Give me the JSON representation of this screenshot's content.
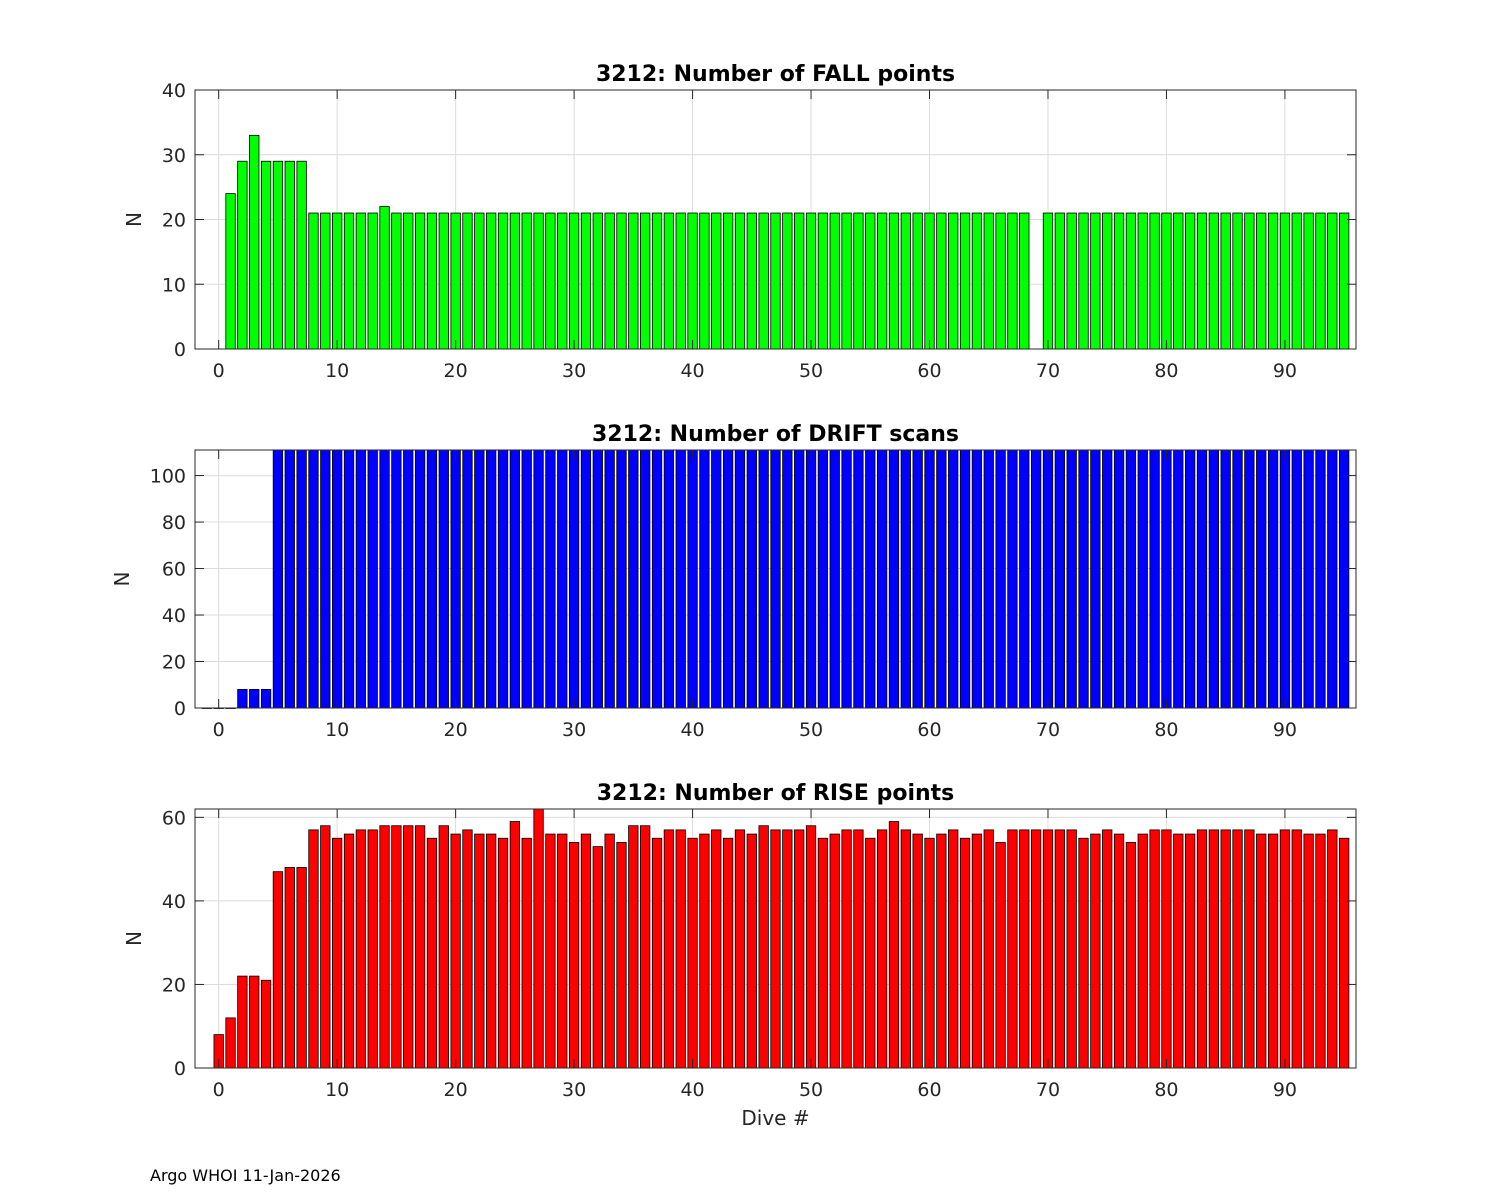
{
  "footer": "Argo WHOI 11-Jan-2026",
  "chart_data": [
    {
      "type": "bar",
      "title": "3212: Number of FALL points",
      "xlabel": "",
      "ylabel": "N",
      "xlim": [
        -2,
        96
      ],
      "ylim": [
        0,
        40
      ],
      "xticks": [
        0,
        10,
        20,
        30,
        40,
        50,
        60,
        70,
        80,
        90
      ],
      "yticks": [
        0,
        10,
        20,
        30,
        40
      ],
      "grid": true,
      "color": "#00ff00",
      "x": [
        1,
        2,
        3,
        4,
        5,
        6,
        7,
        8,
        9,
        10,
        11,
        12,
        13,
        14,
        15,
        16,
        17,
        18,
        19,
        20,
        21,
        22,
        23,
        24,
        25,
        26,
        27,
        28,
        29,
        30,
        31,
        32,
        33,
        34,
        35,
        36,
        37,
        38,
        39,
        40,
        41,
        42,
        43,
        44,
        45,
        46,
        47,
        48,
        49,
        50,
        51,
        52,
        53,
        54,
        55,
        56,
        57,
        58,
        59,
        60,
        61,
        62,
        63,
        64,
        65,
        66,
        67,
        68,
        70,
        71,
        72,
        73,
        74,
        75,
        76,
        77,
        78,
        79,
        80,
        81,
        82,
        83,
        84,
        85,
        86,
        87,
        88,
        89,
        90,
        91,
        92,
        93,
        94,
        95
      ],
      "values": [
        24,
        29,
        33,
        29,
        29,
        29,
        29,
        21,
        21,
        21,
        21,
        21,
        21,
        22,
        21,
        21,
        21,
        21,
        21,
        21,
        21,
        21,
        21,
        21,
        21,
        21,
        21,
        21,
        21,
        21,
        21,
        21,
        21,
        21,
        21,
        21,
        21,
        21,
        21,
        21,
        21,
        21,
        21,
        21,
        21,
        21,
        21,
        21,
        21,
        21,
        21,
        21,
        21,
        21,
        21,
        21,
        21,
        21,
        21,
        21,
        21,
        21,
        21,
        21,
        21,
        21,
        21,
        21,
        21,
        21,
        21,
        21,
        21,
        21,
        21,
        21,
        21,
        21,
        21,
        21,
        21,
        21,
        21,
        21,
        21,
        21,
        21,
        21,
        21,
        21,
        21,
        21,
        21,
        21
      ]
    },
    {
      "type": "bar",
      "title": "3212: Number of DRIFT scans",
      "xlabel": "",
      "ylabel": "N",
      "xlim": [
        -2,
        96
      ],
      "ylim": [
        0,
        111
      ],
      "xticks": [
        0,
        10,
        20,
        30,
        40,
        50,
        60,
        70,
        80,
        90
      ],
      "yticks": [
        0,
        20,
        40,
        60,
        80,
        100
      ],
      "grid": true,
      "color": "#0000ff",
      "x": [
        -1,
        0,
        1,
        2,
        3,
        4,
        5,
        6,
        7,
        8,
        9,
        10,
        11,
        12,
        13,
        14,
        15,
        16,
        17,
        18,
        19,
        20,
        21,
        22,
        23,
        24,
        25,
        26,
        27,
        28,
        29,
        30,
        31,
        32,
        33,
        34,
        35,
        36,
        37,
        38,
        39,
        40,
        41,
        42,
        43,
        44,
        45,
        46,
        47,
        48,
        49,
        50,
        51,
        52,
        53,
        54,
        55,
        56,
        57,
        58,
        59,
        60,
        61,
        62,
        63,
        64,
        65,
        66,
        67,
        68,
        69,
        70,
        71,
        72,
        73,
        74,
        75,
        76,
        77,
        78,
        79,
        80,
        81,
        82,
        83,
        84,
        85,
        86,
        87,
        88,
        89,
        90,
        91,
        92,
        93,
        94,
        95
      ],
      "values": [
        0,
        0,
        0,
        8,
        8,
        8,
        111,
        111,
        111,
        111,
        111,
        111,
        111,
        111,
        111,
        111,
        111,
        111,
        111,
        111,
        111,
        111,
        111,
        111,
        111,
        111,
        111,
        111,
        111,
        111,
        111,
        111,
        111,
        111,
        111,
        111,
        111,
        111,
        111,
        111,
        111,
        111,
        111,
        111,
        111,
        111,
        111,
        111,
        111,
        111,
        111,
        111,
        111,
        111,
        111,
        111,
        111,
        111,
        111,
        111,
        111,
        111,
        111,
        111,
        111,
        111,
        111,
        111,
        111,
        111,
        111,
        111,
        111,
        111,
        111,
        111,
        111,
        111,
        111,
        111,
        111,
        111,
        111,
        111,
        111,
        111,
        111,
        111,
        111,
        111,
        111,
        111,
        111,
        111,
        111,
        111,
        111
      ]
    },
    {
      "type": "bar",
      "title": "3212: Number of RISE points",
      "xlabel": "Dive #",
      "ylabel": "N",
      "xlim": [
        -2,
        96
      ],
      "ylim": [
        0,
        62
      ],
      "xticks": [
        0,
        10,
        20,
        30,
        40,
        50,
        60,
        70,
        80,
        90
      ],
      "yticks": [
        0,
        20,
        40,
        60
      ],
      "grid": true,
      "color": "#ff0000",
      "x": [
        0,
        1,
        2,
        3,
        4,
        5,
        6,
        7,
        8,
        9,
        10,
        11,
        12,
        13,
        14,
        15,
        16,
        17,
        18,
        19,
        20,
        21,
        22,
        23,
        24,
        25,
        26,
        27,
        28,
        29,
        30,
        31,
        32,
        33,
        34,
        35,
        36,
        37,
        38,
        39,
        40,
        41,
        42,
        43,
        44,
        45,
        46,
        47,
        48,
        49,
        50,
        51,
        52,
        53,
        54,
        55,
        56,
        57,
        58,
        59,
        60,
        61,
        62,
        63,
        64,
        65,
        66,
        67,
        68,
        69,
        70,
        71,
        72,
        73,
        74,
        75,
        76,
        77,
        78,
        79,
        80,
        81,
        82,
        83,
        84,
        85,
        86,
        87,
        88,
        89,
        90,
        91,
        92,
        93,
        94,
        95
      ],
      "values": [
        8,
        12,
        22,
        22,
        21,
        47,
        48,
        48,
        57,
        58,
        55,
        56,
        57,
        57,
        58,
        58,
        58,
        58,
        55,
        58,
        56,
        57,
        56,
        56,
        55,
        59,
        55,
        62,
        56,
        56,
        54,
        56,
        53,
        56,
        54,
        58,
        58,
        55,
        57,
        57,
        55,
        56,
        57,
        55,
        57,
        56,
        58,
        57,
        57,
        57,
        58,
        55,
        56,
        57,
        57,
        55,
        57,
        59,
        57,
        56,
        55,
        56,
        57,
        55,
        56,
        57,
        54,
        57,
        57,
        57,
        57,
        57,
        57,
        55,
        56,
        57,
        56,
        54,
        56,
        57,
        57,
        56,
        56,
        57,
        57,
        57,
        57,
        57,
        56,
        56,
        57,
        57,
        56,
        56,
        57,
        55
      ]
    }
  ]
}
